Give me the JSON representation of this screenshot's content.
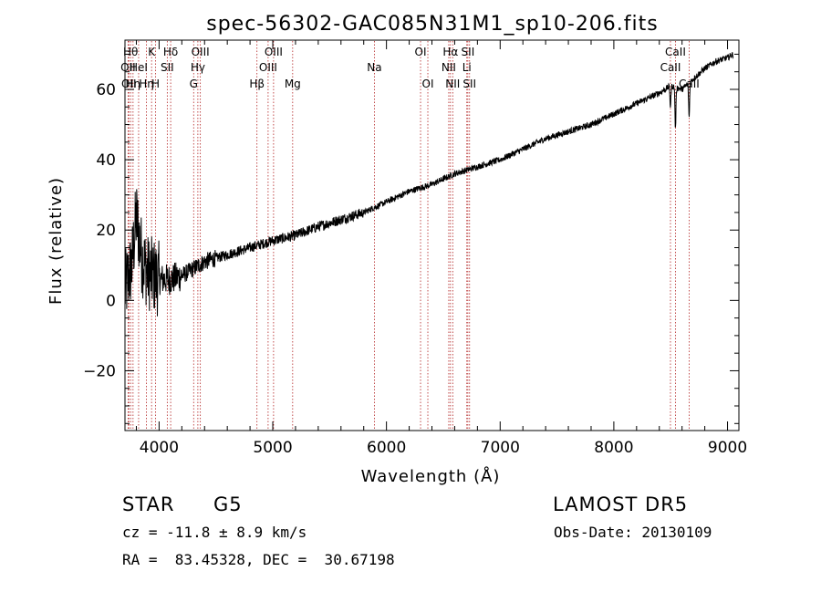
{
  "chart_data": {
    "type": "line",
    "title": "spec-56302-GAC085N31M1_sp10-206.fits",
    "xlabel": "Wavelength (Å)",
    "ylabel": "Flux (relative)",
    "xlim": [
      3700,
      9100
    ],
    "ylim": [
      -37,
      74
    ],
    "xticks": [
      {
        "value": 4000,
        "label": "4000"
      },
      {
        "value": 5000,
        "label": "5000"
      },
      {
        "value": 6000,
        "label": "6000"
      },
      {
        "value": 7000,
        "label": "7000"
      },
      {
        "value": 8000,
        "label": "8000"
      },
      {
        "value": 9000,
        "label": "9000"
      }
    ],
    "yticks": [
      {
        "value": -20,
        "label": "−20"
      },
      {
        "value": 0,
        "label": "0"
      },
      {
        "value": 20,
        "label": "20"
      },
      {
        "value": 40,
        "label": "40"
      },
      {
        "value": 60,
        "label": "60"
      }
    ],
    "spectrum_anchors": {
      "x": [
        3700,
        3760,
        3800,
        3850,
        3900,
        4000,
        4100,
        4200,
        4300,
        4400,
        4500,
        4700,
        4900,
        5000,
        5200,
        5400,
        5600,
        5800,
        6000,
        6200,
        6400,
        6600,
        6800,
        7000,
        7200,
        7400,
        7600,
        7800,
        8000,
        8200,
        8400,
        8500,
        8600,
        8700,
        8800,
        8900,
        9000,
        9050
      ],
      "y": [
        3,
        10,
        24,
        12,
        8,
        6,
        6,
        7,
        9,
        11,
        12,
        14,
        16,
        17,
        18.5,
        21,
        23,
        25,
        28,
        31,
        33,
        36,
        38,
        40,
        43,
        46,
        48,
        50,
        53,
        56,
        59,
        61,
        60,
        63,
        66,
        68,
        69,
        70
      ]
    },
    "absorption_dips": [
      {
        "x": 8498,
        "depth": 6
      },
      {
        "x": 8542,
        "depth": 12
      },
      {
        "x": 8662,
        "depth": 10
      }
    ],
    "lines": [
      {
        "wavelength": 3727,
        "label": "OII",
        "row": 2
      },
      {
        "wavelength": 3734,
        "label": "OII",
        "row": 3
      },
      {
        "wavelength": 3750,
        "label": "Hθ",
        "row": 1
      },
      {
        "wavelength": 3771,
        "label": "Hη",
        "row": 3
      },
      {
        "wavelength": 3820,
        "label": "HeI",
        "row": 2
      },
      {
        "wavelength": 3889,
        "label": "Hη",
        "row": 3
      },
      {
        "wavelength": 3934,
        "label": "K",
        "row": 1
      },
      {
        "wavelength": 3969,
        "label": "H",
        "row": 3
      },
      {
        "wavelength": 4072,
        "label": "SII",
        "row": 2
      },
      {
        "wavelength": 4102,
        "label": "Hδ",
        "row": 1
      },
      {
        "wavelength": 4304,
        "label": "G",
        "row": 3
      },
      {
        "wavelength": 4341,
        "label": "Hγ",
        "row": 2
      },
      {
        "wavelength": 4363,
        "label": "OIII",
        "row": 1
      },
      {
        "wavelength": 4861,
        "label": "Hβ",
        "row": 3
      },
      {
        "wavelength": 4959,
        "label": "OIII",
        "row": 2
      },
      {
        "wavelength": 5007,
        "label": "OIII",
        "row": 1
      },
      {
        "wavelength": 5175,
        "label": "Mg",
        "row": 3
      },
      {
        "wavelength": 5894,
        "label": "Na",
        "row": 2
      },
      {
        "wavelength": 6300,
        "label": "OI",
        "row": 1
      },
      {
        "wavelength": 6364,
        "label": "OI",
        "row": 3
      },
      {
        "wavelength": 6548,
        "label": "NII",
        "row": 2
      },
      {
        "wavelength": 6563,
        "label": "Hα",
        "row": 1
      },
      {
        "wavelength": 6583,
        "label": "NII",
        "row": 3
      },
      {
        "wavelength": 6707,
        "label": "Li",
        "row": 2
      },
      {
        "wavelength": 6716,
        "label": "SII",
        "row": 1
      },
      {
        "wavelength": 6731,
        "label": "SII",
        "row": 3
      },
      {
        "wavelength": 8498,
        "label": "CaII",
        "row": 2
      },
      {
        "wavelength": 8542,
        "label": "CaII",
        "row": 1
      },
      {
        "wavelength": 8662,
        "label": "CaII",
        "row": 3
      }
    ],
    "grid": false,
    "colors": {
      "spectrum": "#000000",
      "lines": "#b22222",
      "axes": "#000000"
    }
  },
  "info": {
    "class_label": "STAR",
    "subclass_label": "G5",
    "survey": "LAMOST DR5",
    "redshift": "cz = -11.8 ± 8.9 km/s",
    "obs_date": "Obs-Date: 20130109",
    "coords": "RA =  83.45328, DEC =  30.67198"
  }
}
